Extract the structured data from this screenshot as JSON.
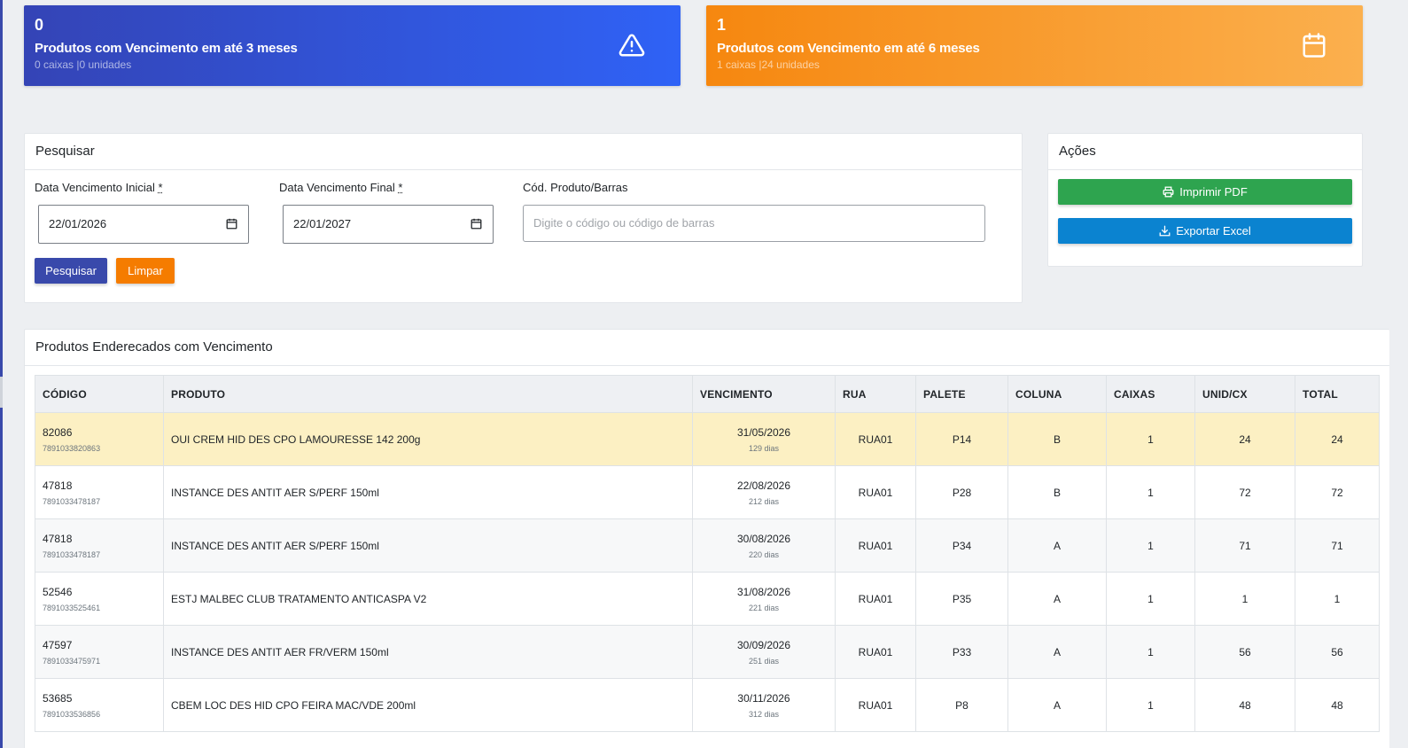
{
  "stats": [
    {
      "count": "0",
      "title": "Produtos com Vencimento em até 3 meses",
      "sub": "0 caixas |0 unidades",
      "icon": "warning-icon",
      "color": "#2f62f6"
    },
    {
      "count": "1",
      "title": "Produtos com Vencimento em até 6 meses",
      "sub": "1 caixas |24 unidades",
      "icon": "calendar-icon",
      "color": "#f6870f"
    }
  ],
  "search": {
    "title": "Pesquisar",
    "date_start_label": "Data Vencimento Inicial",
    "date_end_label": "Data Vencimento Final",
    "required_mark": "*",
    "date_start_value": "22/01/2026",
    "date_end_value": "22/01/2027",
    "code_label": "Cód. Produto/Barras",
    "code_placeholder": "Digite o código ou código de barras",
    "search_button": "Pesquisar",
    "clear_button": "Limpar"
  },
  "actions": {
    "title": "Ações",
    "pdf_button": "Imprimir PDF",
    "excel_button": "Exportar Excel"
  },
  "table": {
    "title": "Produtos Enderecados com Vencimento",
    "columns": [
      "CÓDIGO",
      "PRODUTO",
      "VENCIMENTO",
      "RUA",
      "PALETE",
      "COLUNA",
      "CAIXAS",
      "UNID/CX",
      "TOTAL"
    ],
    "rows": [
      {
        "code": "82086",
        "barcode": "7891033820863",
        "product": "OUI CREM HID DES CPO LAMOURESSE 142 200g",
        "date": "31/05/2026",
        "days": "129 dias",
        "rua": "RUA01",
        "palete": "P14",
        "coluna": "B",
        "caixas": "1",
        "unid": "24",
        "total": "24"
      },
      {
        "code": "47818",
        "barcode": "7891033478187",
        "product": "INSTANCE DES ANTIT AER S/PERF 150ml",
        "date": "22/08/2026",
        "days": "212 dias",
        "rua": "RUA01",
        "palete": "P28",
        "coluna": "B",
        "caixas": "1",
        "unid": "72",
        "total": "72"
      },
      {
        "code": "47818",
        "barcode": "7891033478187",
        "product": "INSTANCE DES ANTIT AER S/PERF 150ml",
        "date": "30/08/2026",
        "days": "220 dias",
        "rua": "RUA01",
        "palete": "P34",
        "coluna": "A",
        "caixas": "1",
        "unid": "71",
        "total": "71"
      },
      {
        "code": "52546",
        "barcode": "7891033525461",
        "product": "ESTJ MALBEC CLUB TRATAMENTO ANTICASPA V2",
        "date": "31/08/2026",
        "days": "221 dias",
        "rua": "RUA01",
        "palete": "P35",
        "coluna": "A",
        "caixas": "1",
        "unid": "1",
        "total": "1"
      },
      {
        "code": "47597",
        "barcode": "7891033475971",
        "product": "INSTANCE DES ANTIT AER FR/VERM 150ml",
        "date": "30/09/2026",
        "days": "251 dias",
        "rua": "RUA01",
        "palete": "P33",
        "coluna": "A",
        "caixas": "1",
        "unid": "56",
        "total": "56"
      },
      {
        "code": "53685",
        "barcode": "7891033536856",
        "product": "CBEM LOC DES HID CPO FEIRA MAC/VDE 200ml",
        "date": "30/11/2026",
        "days": "312 dias",
        "rua": "RUA01",
        "palete": "P8",
        "coluna": "A",
        "caixas": "1",
        "unid": "48",
        "total": "48"
      }
    ]
  }
}
